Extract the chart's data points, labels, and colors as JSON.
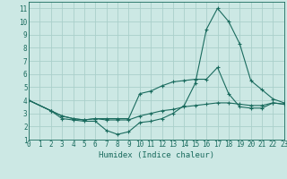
{
  "xlabel": "Humidex (Indice chaleur)",
  "xlim": [
    0,
    23
  ],
  "ylim": [
    1,
    11.5
  ],
  "yticks": [
    1,
    2,
    3,
    4,
    5,
    6,
    7,
    8,
    9,
    10,
    11
  ],
  "xticks": [
    0,
    1,
    2,
    3,
    4,
    5,
    6,
    7,
    8,
    9,
    10,
    11,
    12,
    13,
    14,
    15,
    16,
    17,
    18,
    19,
    20,
    21,
    22,
    23
  ],
  "background_color": "#cce8e4",
  "grid_color": "#aacfca",
  "line_color": "#1a6b5e",
  "line1_x": [
    0,
    2,
    3,
    4,
    5,
    6,
    7,
    8,
    9,
    10,
    11,
    12,
    13,
    14,
    15,
    16,
    17,
    18,
    19,
    20,
    21,
    22,
    23
  ],
  "line1_y": [
    4.0,
    3.2,
    2.6,
    2.5,
    2.4,
    2.4,
    1.7,
    1.4,
    1.6,
    2.3,
    2.4,
    2.6,
    3.0,
    3.6,
    5.3,
    9.4,
    11.0,
    10.0,
    8.3,
    5.5,
    4.8,
    4.1,
    3.8
  ],
  "line2_x": [
    0,
    2,
    3,
    4,
    5,
    6,
    7,
    8,
    9,
    10,
    11,
    12,
    13,
    14,
    15,
    16,
    17,
    18,
    19,
    20,
    21,
    22,
    23
  ],
  "line2_y": [
    4.0,
    3.2,
    2.8,
    2.6,
    2.5,
    2.6,
    2.6,
    2.6,
    2.6,
    4.5,
    4.7,
    5.1,
    5.4,
    5.5,
    5.6,
    5.6,
    6.5,
    4.5,
    3.5,
    3.4,
    3.4,
    3.8,
    3.7
  ],
  "line3_x": [
    0,
    2,
    3,
    4,
    5,
    6,
    7,
    8,
    9,
    10,
    11,
    12,
    13,
    14,
    15,
    16,
    17,
    18,
    19,
    20,
    21,
    22,
    23
  ],
  "line3_y": [
    4.0,
    3.2,
    2.8,
    2.6,
    2.5,
    2.6,
    2.5,
    2.5,
    2.5,
    2.8,
    3.0,
    3.2,
    3.3,
    3.5,
    3.6,
    3.7,
    3.8,
    3.8,
    3.7,
    3.6,
    3.6,
    3.8,
    3.7
  ]
}
